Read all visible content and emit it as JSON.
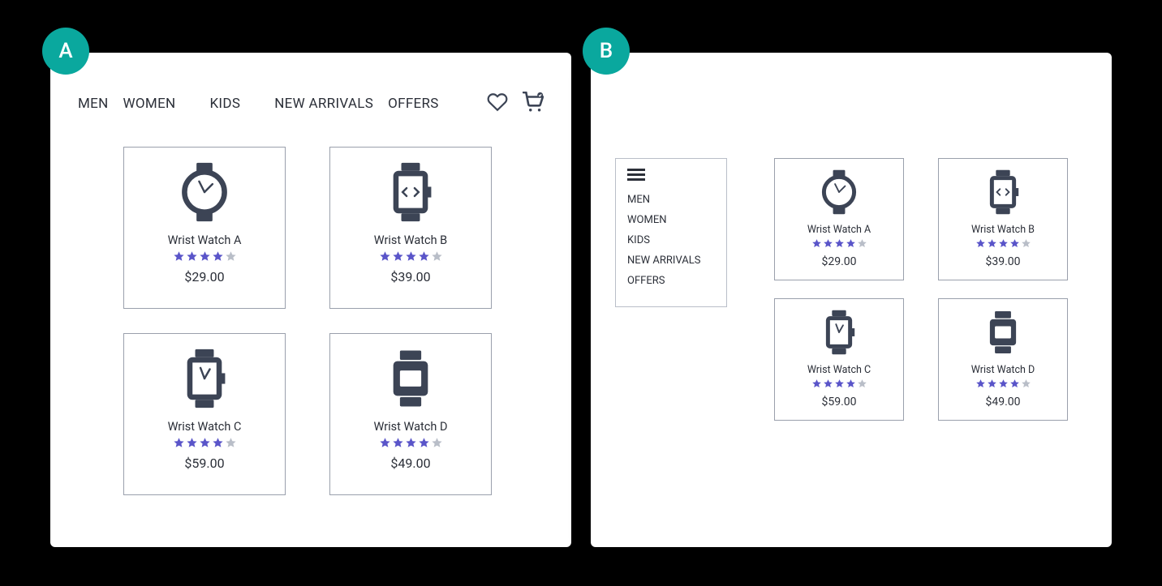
{
  "layout": "two-panel-compare",
  "colors": {
    "badge_bg": "#0aa89e",
    "card_border": "#9aa0ac",
    "text": "#2b2f38",
    "icon": "#3c4455",
    "star_filled": "#5a55c9",
    "star_empty": "#b9bec8",
    "panel_bg": "#ffffff",
    "page_bg": "#000000"
  },
  "panel_a": {
    "badge": "A",
    "nav": [
      "MEN",
      "WOMEN",
      "KIDS",
      "NEW ARRIVALS",
      "OFFERS"
    ]
  },
  "panel_b": {
    "badge": "B",
    "menu": [
      "MEN",
      "WOMEN",
      "KIDS",
      "NEW ARRIVALS",
      "OFFERS"
    ]
  },
  "products": [
    {
      "name": "Wrist Watch A",
      "price": "$29.00",
      "rating": 4,
      "icon": "watch-round"
    },
    {
      "name": "Wrist Watch B",
      "price": "$39.00",
      "rating": 4,
      "icon": "watch-code"
    },
    {
      "name": "Wrist Watch C",
      "price": "$59.00",
      "rating": 4,
      "icon": "watch-square-hands"
    },
    {
      "name": "Wrist Watch D",
      "price": "$49.00",
      "rating": 4,
      "icon": "watch-square-solid"
    }
  ]
}
